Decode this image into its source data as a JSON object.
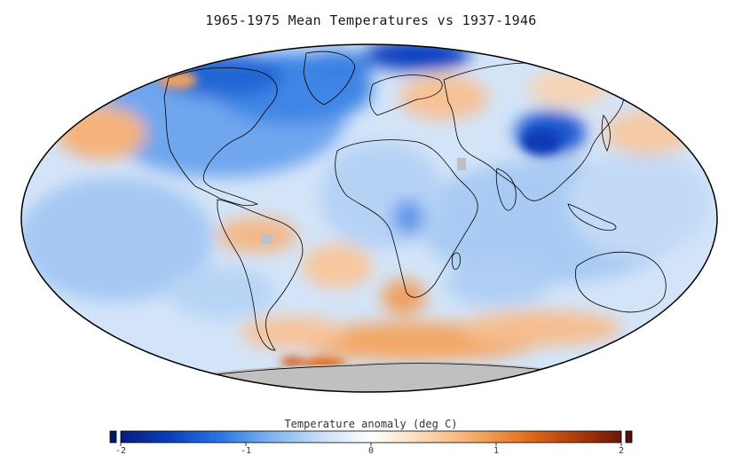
{
  "title": "1965-1975 Mean Temperatures vs 1937-1946",
  "projection": "mollweide",
  "legend": {
    "title": "Temperature anomaly (deg C)",
    "range": [
      -2,
      2
    ],
    "ticks": [
      {
        "value": -2,
        "label": "-2"
      },
      {
        "value": -1,
        "label": "-1"
      },
      {
        "value": 0,
        "label": "0"
      },
      {
        "value": 1,
        "label": "1"
      },
      {
        "value": 2,
        "label": "2"
      }
    ],
    "under_color": "#001a66",
    "over_color": "#5a0f0f",
    "colormap": [
      "#0a1a80",
      "#0b3fbf",
      "#2b76e6",
      "#7fb2f0",
      "#c9def7",
      "#ffffff",
      "#fbd9b6",
      "#f7ae6e",
      "#e8741f",
      "#b6400c",
      "#6e1708"
    ]
  },
  "no_data_color": "#c0c0c0",
  "coastline_color": "#000000"
}
